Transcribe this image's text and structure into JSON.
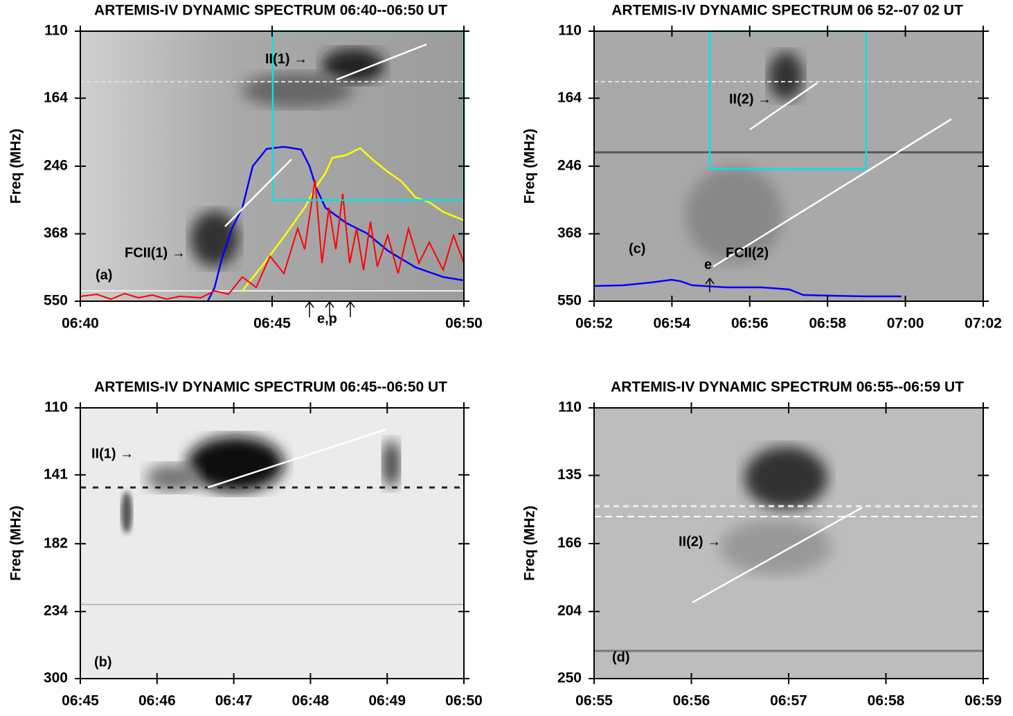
{
  "chart_data": [
    {
      "type": "spectrogram",
      "title": "ARTEMIS-IV DYNAMIC SPECTRUM 06:40--06:50 UT",
      "ylabel": "Freq (MHz)",
      "ylim": [
        110,
        550
      ],
      "yticks": [
        110,
        164,
        246,
        368,
        550
      ],
      "y_log": true,
      "y_inverted": true,
      "xlim": [
        "06:40",
        "06:50"
      ],
      "xticks": [
        "06:40",
        "06:45",
        "06:50"
      ],
      "panel_label": "(a)",
      "annotations": [
        "II(1) →",
        "FCII(1) →",
        "e,p"
      ]
    },
    {
      "type": "spectrogram",
      "title": "ARTEMIS-IV DYNAMIC SPECTRUM 06 52--07 02 UT",
      "ylabel": "Freq (MHz)",
      "ylim": [
        110,
        550
      ],
      "yticks": [
        110,
        164,
        246,
        368,
        550
      ],
      "y_log": true,
      "y_inverted": true,
      "xlim": [
        "06:52",
        "07:02"
      ],
      "xticks": [
        "06:52",
        "06:54",
        "06:56",
        "06:58",
        "07:00",
        "07:02"
      ],
      "panel_label": "(c)",
      "annotations": [
        "II(2) →",
        "FCII(2)",
        "e"
      ]
    },
    {
      "type": "spectrogram",
      "title": "ARTEMIS-IV DYNAMIC SPECTRUM 06:45--06:50 UT",
      "ylabel": "Freq (MHz)",
      "ylim": [
        110,
        300
      ],
      "yticks": [
        110,
        141,
        182,
        234,
        300
      ],
      "y_log": true,
      "y_inverted": true,
      "xlim": [
        "06:45",
        "06:50"
      ],
      "xticks": [
        "06:45",
        "06:46",
        "06:47",
        "06:48",
        "06:49",
        "06:50"
      ],
      "panel_label": "(b)",
      "annotations": [
        "II(1) →"
      ]
    },
    {
      "type": "spectrogram",
      "title": "ARTEMIS-IV DYNAMIC SPECTRUM 06:55--06:59 UT",
      "ylabel": "Freq (MHz)",
      "ylim": [
        110,
        250
      ],
      "yticks": [
        110,
        135,
        166,
        204,
        250
      ],
      "y_log": true,
      "y_inverted": true,
      "xlim": [
        "06:55",
        "06:59"
      ],
      "xticks": [
        "06:55",
        "06:56",
        "06:57",
        "06:58",
        "06:59"
      ],
      "panel_label": "(d)",
      "annotations": [
        "II(2) →"
      ]
    }
  ]
}
